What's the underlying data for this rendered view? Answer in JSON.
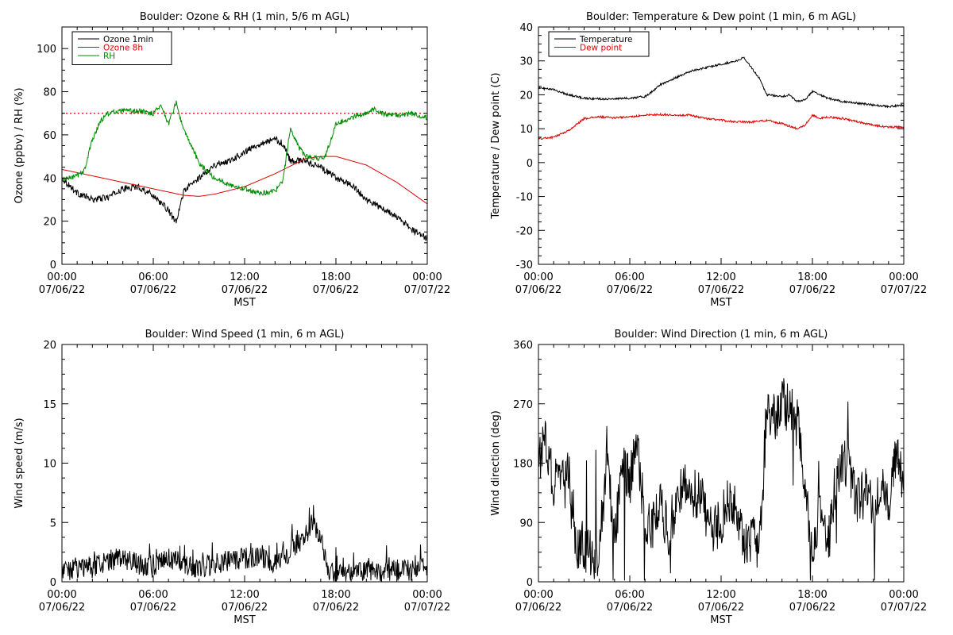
{
  "chart_data": [
    {
      "type": "line",
      "title": "Boulder: Ozone & RH (1 min, 5/6 m AGL)",
      "xlabel": "MST",
      "ylabel": "Ozone (ppbv) / RH (%)",
      "xlim": [
        0,
        24
      ],
      "ylim": [
        0,
        110
      ],
      "yticks": [
        0,
        20,
        40,
        60,
        80,
        100
      ],
      "xticks": [
        {
          "t": 0,
          "time": "00:00",
          "date": "07/06/22"
        },
        {
          "t": 6,
          "time": "06:00",
          "date": "07/06/22"
        },
        {
          "t": 12,
          "time": "12:00",
          "date": "07/06/22"
        },
        {
          "t": 18,
          "time": "18:00",
          "date": "07/06/22"
        },
        {
          "t": 24,
          "time": "00:00",
          "date": "07/07/22"
        }
      ],
      "legend_position": "top-left",
      "reference_line": {
        "y": 70,
        "color": "#e00000",
        "style": "dotted"
      },
      "series": [
        {
          "name": "Ozone 1min",
          "color": "#000000",
          "noise": 1.5,
          "x": [
            0,
            1,
            2,
            3,
            4,
            5,
            6,
            7,
            7.5,
            8,
            9,
            10,
            11,
            12,
            13,
            14,
            14.5,
            15,
            16,
            17,
            18,
            19,
            20,
            21,
            22,
            23,
            24
          ],
          "y": [
            40,
            33,
            30,
            31,
            35,
            36,
            32,
            25,
            19,
            34,
            40,
            46,
            48,
            52,
            56,
            58,
            56,
            48,
            48,
            45,
            40,
            37,
            30,
            26,
            22,
            16,
            12
          ]
        },
        {
          "name": "Ozone 8h",
          "color": "#e00000",
          "noise": 0,
          "x": [
            0,
            2,
            4,
            6,
            8,
            9,
            10,
            12,
            14,
            16,
            17,
            18,
            20,
            22,
            24
          ],
          "y": [
            44,
            41,
            38,
            35,
            32,
            31.5,
            32.5,
            36,
            42,
            49,
            50,
            50,
            46,
            38,
            28
          ]
        },
        {
          "name": "RH",
          "color": "#008c00",
          "noise": 1.2,
          "x": [
            0,
            1,
            1.5,
            2,
            2.5,
            3,
            4,
            5,
            6,
            6.5,
            7,
            7.5,
            8,
            8.5,
            9,
            10,
            11,
            12,
            13,
            14,
            14.5,
            15,
            15.5,
            16,
            17,
            17.3,
            18,
            19,
            20,
            20.5,
            21,
            22,
            23,
            24
          ],
          "y": [
            39,
            41,
            44,
            58,
            66,
            70,
            71,
            71,
            70,
            74,
            65,
            75,
            62,
            55,
            47,
            40,
            37,
            35,
            33,
            34,
            38,
            63,
            55,
            50,
            49,
            50,
            65,
            68,
            70,
            72,
            70,
            69,
            70,
            68
          ]
        }
      ]
    },
    {
      "type": "line",
      "title": "Boulder: Temperature & Dew point (1 min, 6 m AGL)",
      "xlabel": "MST",
      "ylabel": "Temperature / Dew point (C)",
      "xlim": [
        0,
        24
      ],
      "ylim": [
        -30,
        40
      ],
      "yticks": [
        -30,
        -20,
        -10,
        0,
        10,
        20,
        30,
        40
      ],
      "xticks": [
        {
          "t": 0,
          "time": "00:00",
          "date": "07/06/22"
        },
        {
          "t": 6,
          "time": "06:00",
          "date": "07/06/22"
        },
        {
          "t": 12,
          "time": "12:00",
          "date": "07/06/22"
        },
        {
          "t": 18,
          "time": "18:00",
          "date": "07/06/22"
        },
        {
          "t": 24,
          "time": "00:00",
          "date": "07/07/22"
        }
      ],
      "legend_position": "top-left",
      "series": [
        {
          "name": "Temperature",
          "color": "#000000",
          "noise": 0.3,
          "x": [
            0,
            1,
            2,
            3,
            4,
            5,
            6,
            7,
            7.5,
            8,
            9,
            10,
            11,
            12,
            13,
            13.5,
            14,
            14.5,
            15,
            16,
            16.5,
            17,
            17.5,
            18,
            19,
            20,
            21,
            22,
            23,
            24
          ],
          "y": [
            22,
            21.5,
            20,
            19,
            18.8,
            18.8,
            19,
            19.5,
            21,
            23,
            25,
            27,
            28,
            29,
            30,
            31,
            28,
            25,
            20,
            19.5,
            20,
            18,
            18.5,
            21,
            19,
            18,
            17.5,
            17,
            16.5,
            17
          ]
        },
        {
          "name": "Dew point",
          "color": "#e00000",
          "noise": 0.3,
          "x": [
            0,
            1,
            2,
            3,
            4,
            5,
            6,
            7,
            8,
            9,
            10,
            11,
            12,
            13,
            14,
            15,
            16,
            17,
            17.5,
            18,
            18.5,
            19,
            20,
            21,
            22,
            23,
            24
          ],
          "y": [
            7,
            7.5,
            9.5,
            13,
            13.5,
            13.2,
            13.5,
            14,
            14.2,
            14,
            14,
            13,
            12.5,
            12,
            12,
            12.5,
            11.5,
            10,
            11,
            14,
            13,
            13.5,
            13,
            12,
            11,
            10.5,
            10.5
          ]
        }
      ]
    },
    {
      "type": "line",
      "title": "Boulder: Wind Speed (1 min, 6 m AGL)",
      "xlabel": "MST",
      "ylabel": "Wind speed (m/s)",
      "xlim": [
        0,
        24
      ],
      "ylim": [
        0,
        20
      ],
      "yticks": [
        0,
        5,
        10,
        15,
        20
      ],
      "xticks": [
        {
          "t": 0,
          "time": "00:00",
          "date": "07/06/22"
        },
        {
          "t": 6,
          "time": "06:00",
          "date": "07/06/22"
        },
        {
          "t": 12,
          "time": "12:00",
          "date": "07/06/22"
        },
        {
          "t": 18,
          "time": "18:00",
          "date": "07/06/22"
        },
        {
          "t": 24,
          "time": "00:00",
          "date": "07/07/22"
        }
      ],
      "series": [
        {
          "name": "",
          "color": "#000000",
          "noise": 0.9,
          "x": [
            0,
            1,
            2,
            3,
            4,
            5,
            6,
            7,
            8,
            9,
            10,
            11,
            12,
            13,
            14,
            15,
            16,
            16.5,
            17,
            17.5,
            18,
            19,
            20,
            21,
            22,
            23,
            24
          ],
          "y": [
            1,
            1,
            1.2,
            1.8,
            2,
            1.5,
            1.2,
            2,
            1.5,
            1.2,
            1.5,
            1.8,
            2,
            2,
            1.5,
            2.5,
            4,
            5,
            3.5,
            1,
            0.6,
            0.8,
            1,
            0.8,
            0.9,
            1,
            1.2
          ]
        }
      ]
    },
    {
      "type": "line",
      "title": "Boulder: Wind Direction (1 min, 6 m AGL)",
      "xlabel": "MST",
      "ylabel": "Wind direction (deg)",
      "xlim": [
        0,
        24
      ],
      "ylim": [
        0,
        360
      ],
      "yticks": [
        0,
        90,
        180,
        270,
        360
      ],
      "xticks": [
        {
          "t": 0,
          "time": "00:00",
          "date": "07/06/22"
        },
        {
          "t": 6,
          "time": "06:00",
          "date": "07/06/22"
        },
        {
          "t": 12,
          "time": "12:00",
          "date": "07/06/22"
        },
        {
          "t": 18,
          "time": "18:00",
          "date": "07/06/22"
        },
        {
          "t": 24,
          "time": "00:00",
          "date": "07/07/22"
        }
      ],
      "series": [
        {
          "name": "",
          "color": "#000000",
          "noise": 40,
          "x": [
            0,
            0.5,
            1,
            1.5,
            2,
            2.5,
            3,
            3.5,
            4,
            4.5,
            5,
            5.5,
            6,
            6.5,
            7,
            7.5,
            8,
            8.5,
            9,
            9.5,
            10,
            10.5,
            11,
            11.5,
            12,
            12.5,
            13,
            13.5,
            14,
            14.5,
            15,
            15.5,
            16,
            16.5,
            17,
            17.5,
            18,
            18.5,
            19,
            19.5,
            20,
            20.5,
            21,
            21.5,
            22,
            22.5,
            23,
            23.5,
            24
          ],
          "y": [
            190,
            210,
            150,
            140,
            160,
            60,
            50,
            45,
            40,
            200,
            60,
            180,
            150,
            220,
            80,
            90,
            130,
            70,
            110,
            150,
            120,
            140,
            100,
            80,
            90,
            130,
            100,
            60,
            70,
            40,
            260,
            250,
            280,
            260,
            240,
            150,
            30,
            120,
            40,
            150,
            180,
            170,
            120,
            140,
            110,
            160,
            100,
            200,
            150
          ]
        }
      ]
    }
  ]
}
